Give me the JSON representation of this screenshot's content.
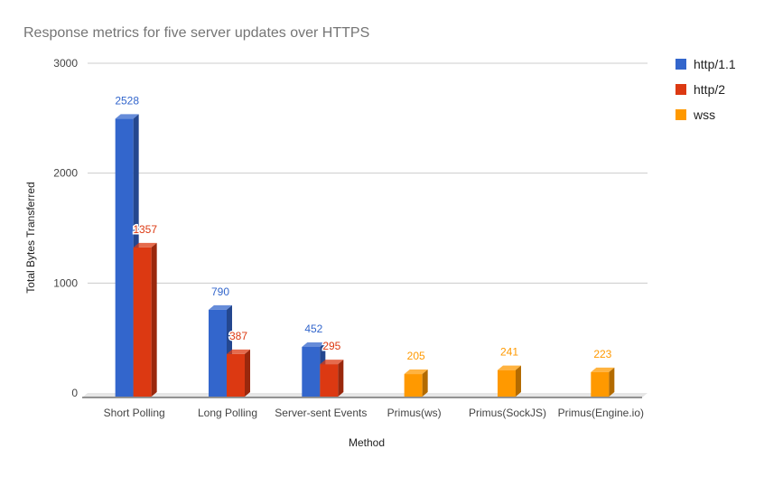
{
  "chart_data": {
    "type": "bar",
    "title": "Response metrics for five server updates over HTTPS",
    "xlabel": "Method",
    "ylabel": "Total Bytes Transferred",
    "ylim": [
      0,
      3000
    ],
    "yticks": [
      "0",
      "1000",
      "2000",
      "3000"
    ],
    "grid": true,
    "legend_position": "right",
    "style": "3d",
    "categories": [
      "Short Polling",
      "Long Polling",
      "Server-sent Events",
      "Primus(ws)",
      "Primus(SockJS)",
      "Primus(Engine.io)"
    ],
    "series": [
      {
        "name": "http/1.1",
        "color": "#3366cc",
        "values": [
          2528,
          790,
          452,
          null,
          null,
          null
        ]
      },
      {
        "name": "http/2",
        "color": "#dc3912",
        "values": [
          1357,
          387,
          295,
          null,
          null,
          null
        ]
      },
      {
        "name": "wss",
        "color": "#ff9900",
        "values": [
          null,
          null,
          null,
          205,
          241,
          223
        ]
      }
    ]
  }
}
